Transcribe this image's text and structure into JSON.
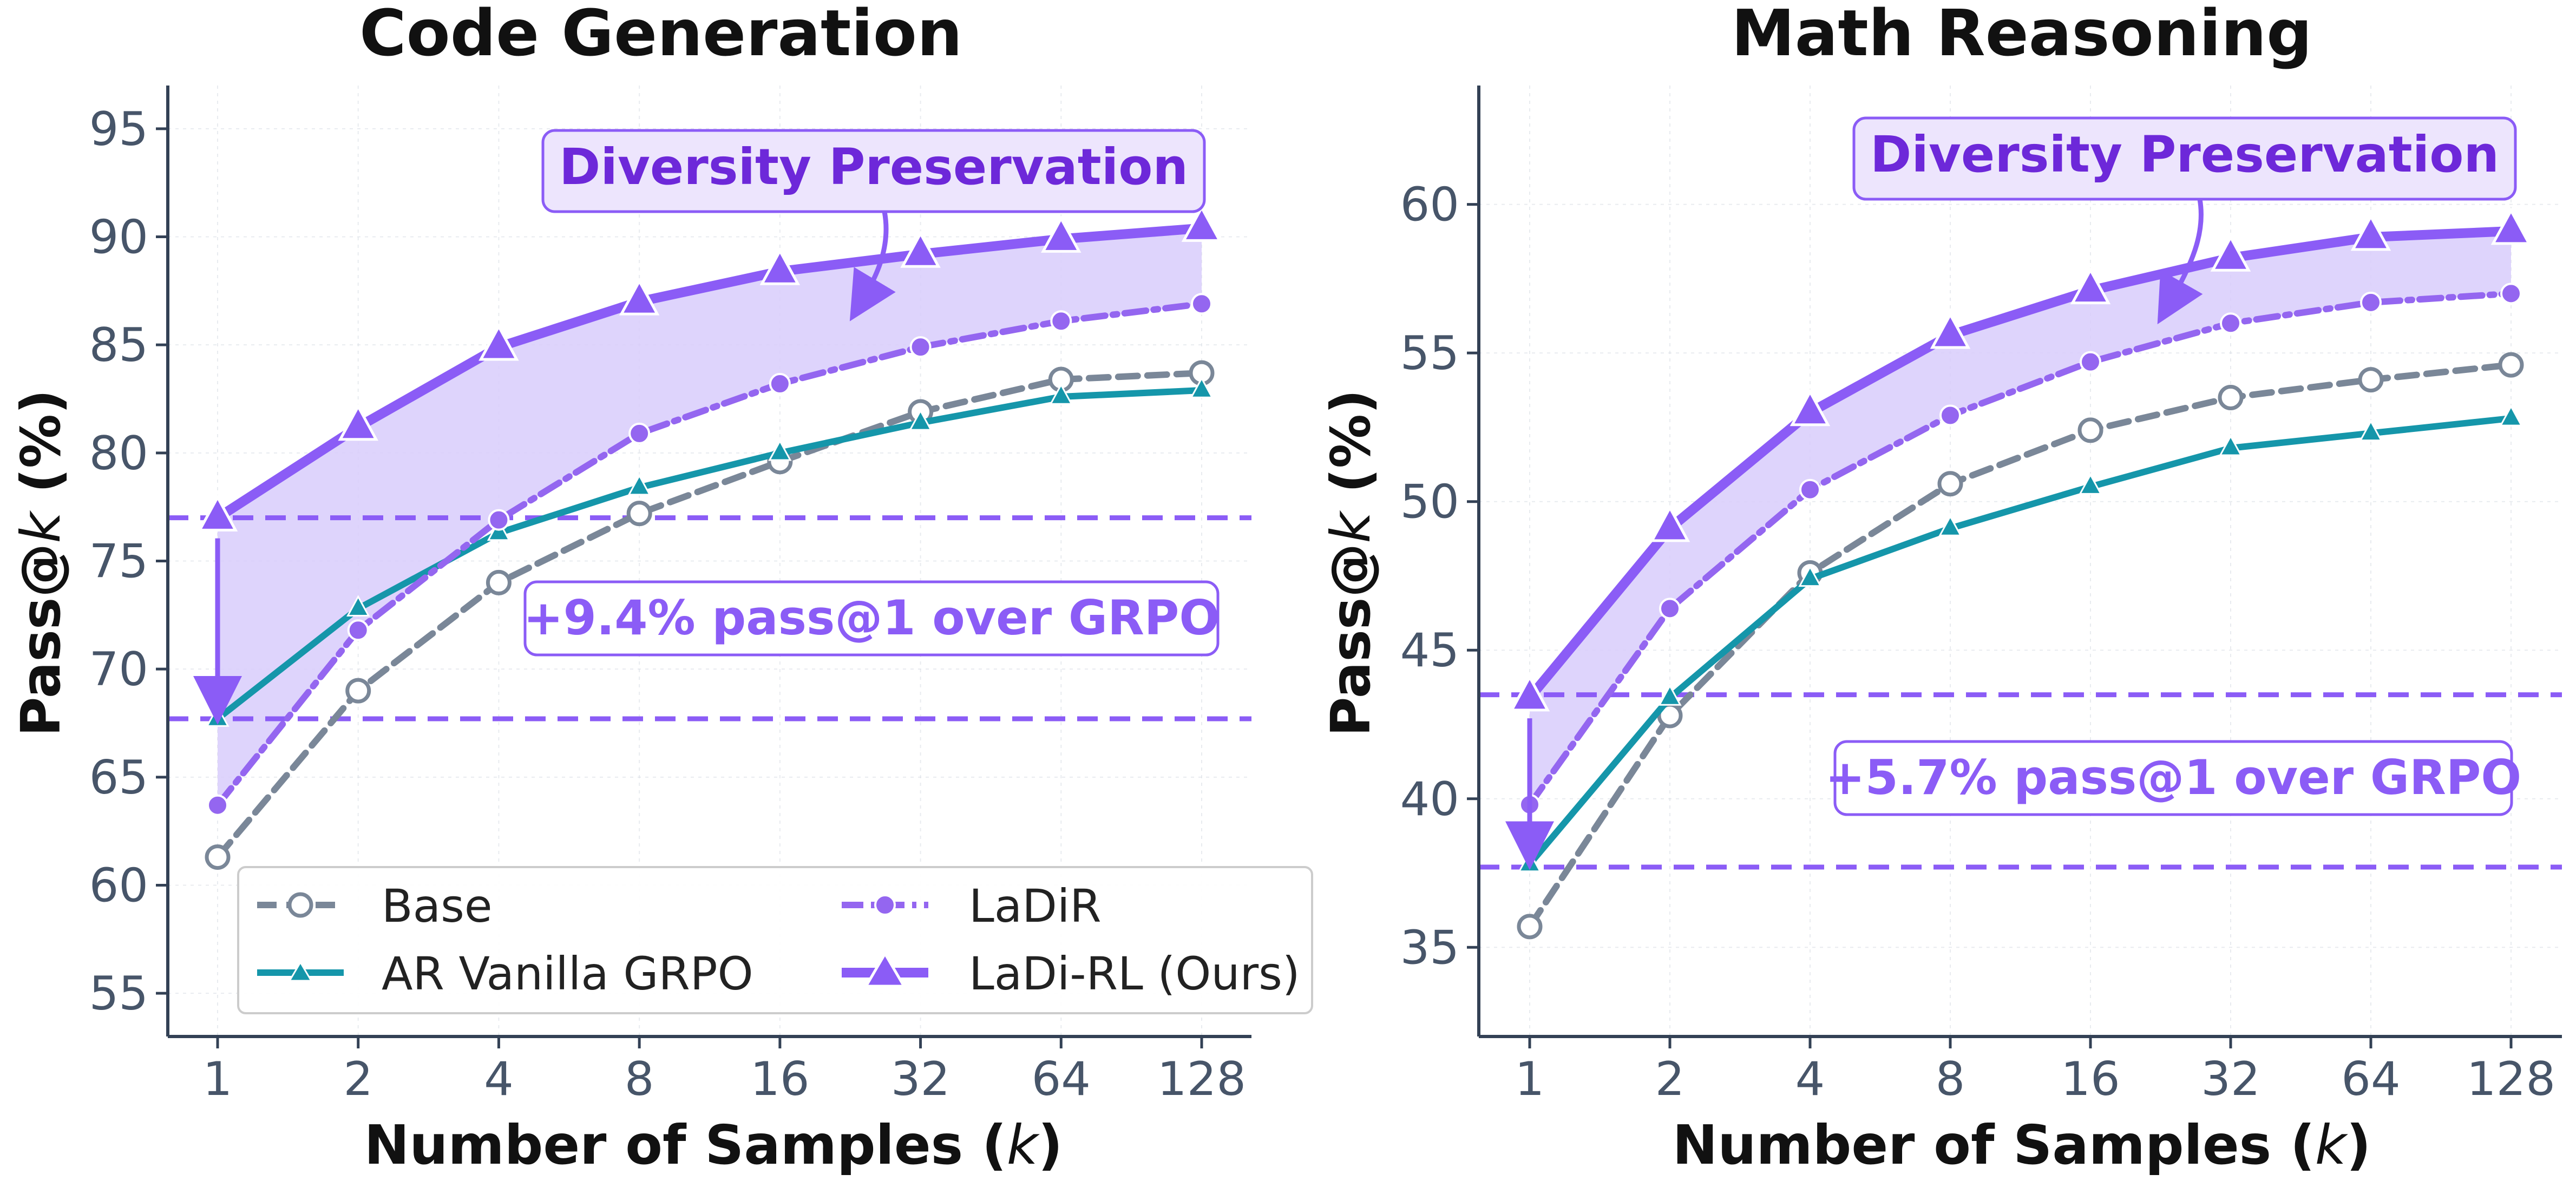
{
  "colors": {
    "base": "#7a8798",
    "grpo": "#1596aa",
    "ladir": "#9466f0",
    "ladirl": "#8b5cf6",
    "annot_text": "#6d28d9",
    "annot_fill": "#ede5fd",
    "annot_border": "#8b5cf6",
    "gain_text": "#8b5cf6",
    "fill_region": "#d8ccfb",
    "axis": "#334155",
    "ticktext": "#475569"
  },
  "legend": {
    "base": "Base",
    "grpo": "AR Vanilla GRPO",
    "ladir": "LaDiR",
    "ladirl": "LaDi-RL (Ours)"
  },
  "chart_data": [
    {
      "type": "line",
      "title": "Code Generation",
      "xlabel": "Number of Samples (k)",
      "ylabel": "Pass@k (%)",
      "categories": [
        "1",
        "2",
        "4",
        "8",
        "16",
        "32",
        "64",
        "128"
      ],
      "ylim": [
        53,
        97
      ],
      "yticks": [
        55,
        60,
        65,
        70,
        75,
        80,
        85,
        90,
        95
      ],
      "series": [
        {
          "key": "base",
          "name": "Base",
          "values": [
            61.3,
            69.0,
            74.0,
            77.2,
            79.6,
            81.9,
            83.4,
            83.7
          ]
        },
        {
          "key": "grpo",
          "name": "AR Vanilla GRPO",
          "values": [
            67.7,
            72.8,
            76.3,
            78.4,
            80.0,
            81.4,
            82.6,
            82.9
          ]
        },
        {
          "key": "ladir",
          "name": "LaDiR",
          "values": [
            63.7,
            71.8,
            76.9,
            80.9,
            83.2,
            84.9,
            86.1,
            86.9
          ]
        },
        {
          "key": "ladirl",
          "name": "LaDi-RL (Ours)",
          "values": [
            77.0,
            81.2,
            84.9,
            87.0,
            88.4,
            89.2,
            89.9,
            90.4
          ]
        }
      ],
      "hlines": [
        77.0,
        67.7
      ],
      "annotation": "Diversity Preservation",
      "gain_text": "+9.4% pass@1 over GRPO"
    },
    {
      "type": "line",
      "title": "Math Reasoning",
      "xlabel": "Number of Samples (k)",
      "ylabel": "Pass@k (%)",
      "categories": [
        "1",
        "2",
        "4",
        "8",
        "16",
        "32",
        "64",
        "128"
      ],
      "ylim": [
        32,
        64
      ],
      "yticks": [
        35,
        40,
        45,
        50,
        55,
        60
      ],
      "series": [
        {
          "key": "base",
          "name": "Base",
          "values": [
            35.7,
            42.8,
            47.6,
            50.6,
            52.4,
            53.5,
            54.1,
            54.6
          ]
        },
        {
          "key": "grpo",
          "name": "AR Vanilla GRPO",
          "values": [
            37.8,
            43.4,
            47.4,
            49.1,
            50.5,
            51.8,
            52.3,
            52.8
          ]
        },
        {
          "key": "ladir",
          "name": "LaDiR",
          "values": [
            39.8,
            46.4,
            50.4,
            52.9,
            54.7,
            56.0,
            56.7,
            57.0
          ]
        },
        {
          "key": "ladirl",
          "name": "LaDi-RL (Ours)",
          "values": [
            43.4,
            49.1,
            53.0,
            55.6,
            57.1,
            58.2,
            58.9,
            59.1
          ]
        }
      ],
      "hlines": [
        43.5,
        37.7
      ],
      "annotation": "Diversity Preservation",
      "gain_text": "+5.7% pass@1 over GRPO"
    }
  ]
}
